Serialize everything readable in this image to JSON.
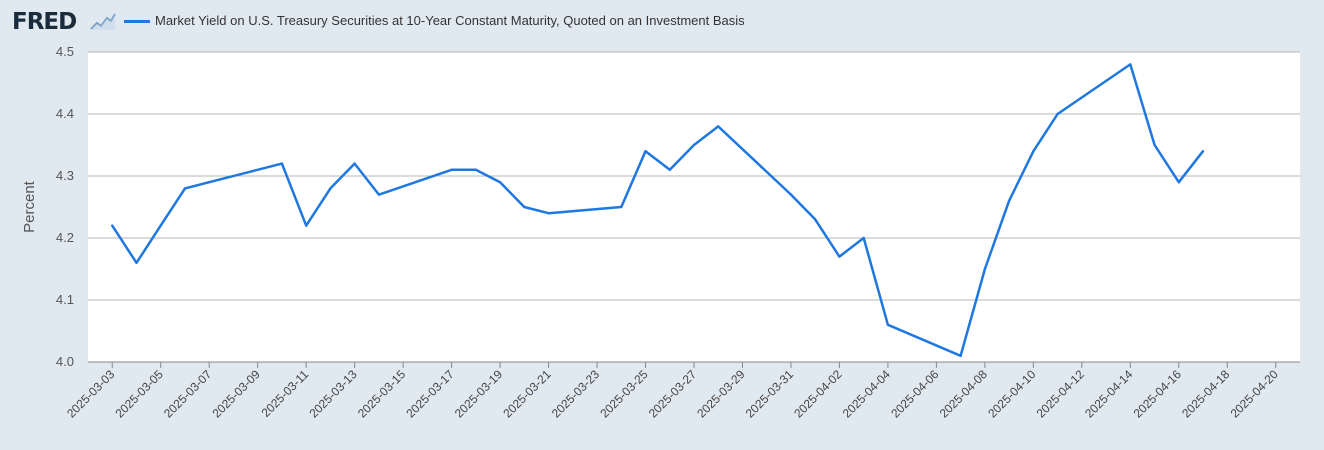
{
  "header": {
    "logo": "FRED",
    "logo_icon": "line-chart-icon",
    "legend_label": "Market Yield on U.S. Treasury Securities at 10-Year Constant Maturity, Quoted on an Investment Basis"
  },
  "colors": {
    "background": "#e1e9f0",
    "plot_background": "#ffffff",
    "series": "#1f77e0",
    "grid": "#b7b7b7"
  },
  "chart_data": {
    "type": "line",
    "title": "",
    "xlabel": "",
    "ylabel": "Percent",
    "ylim": [
      4.0,
      4.5
    ],
    "yticks": [
      "4.0",
      "4.1",
      "4.2",
      "4.3",
      "4.4",
      "4.5"
    ],
    "xlim": [
      "2025-03-02",
      "2025-04-21"
    ],
    "xticks": [
      "2025-03-03",
      "2025-03-05",
      "2025-03-07",
      "2025-03-09",
      "2025-03-11",
      "2025-03-13",
      "2025-03-15",
      "2025-03-17",
      "2025-03-19",
      "2025-03-21",
      "2025-03-23",
      "2025-03-25",
      "2025-03-27",
      "2025-03-29",
      "2025-03-31",
      "2025-04-02",
      "2025-04-04",
      "2025-04-06",
      "2025-04-08",
      "2025-04-10",
      "2025-04-12",
      "2025-04-14",
      "2025-04-16",
      "2025-04-18",
      "2025-04-20"
    ],
    "grid": true,
    "legend": "top-left",
    "series": [
      {
        "name": "Market Yield on U.S. Treasury Securities at 10-Year Constant Maturity, Quoted on an Investment Basis",
        "x": [
          "2025-03-03",
          "2025-03-04",
          "2025-03-05",
          "2025-03-06",
          "2025-03-07",
          "2025-03-10",
          "2025-03-11",
          "2025-03-12",
          "2025-03-13",
          "2025-03-14",
          "2025-03-17",
          "2025-03-18",
          "2025-03-19",
          "2025-03-20",
          "2025-03-21",
          "2025-03-24",
          "2025-03-25",
          "2025-03-26",
          "2025-03-27",
          "2025-03-28",
          "2025-03-31",
          "2025-04-01",
          "2025-04-02",
          "2025-04-03",
          "2025-04-04",
          "2025-04-07",
          "2025-04-08",
          "2025-04-09",
          "2025-04-10",
          "2025-04-11",
          "2025-04-14",
          "2025-04-15",
          "2025-04-16",
          "2025-04-17"
        ],
        "values": [
          4.22,
          4.16,
          4.22,
          4.28,
          4.29,
          4.32,
          4.22,
          4.28,
          4.32,
          4.27,
          4.31,
          4.31,
          4.29,
          4.25,
          4.24,
          4.25,
          4.34,
          4.31,
          4.35,
          4.38,
          4.27,
          4.23,
          4.17,
          4.2,
          4.06,
          4.01,
          4.15,
          4.26,
          4.34,
          4.4,
          4.48,
          4.35,
          4.29,
          4.34
        ]
      }
    ]
  }
}
